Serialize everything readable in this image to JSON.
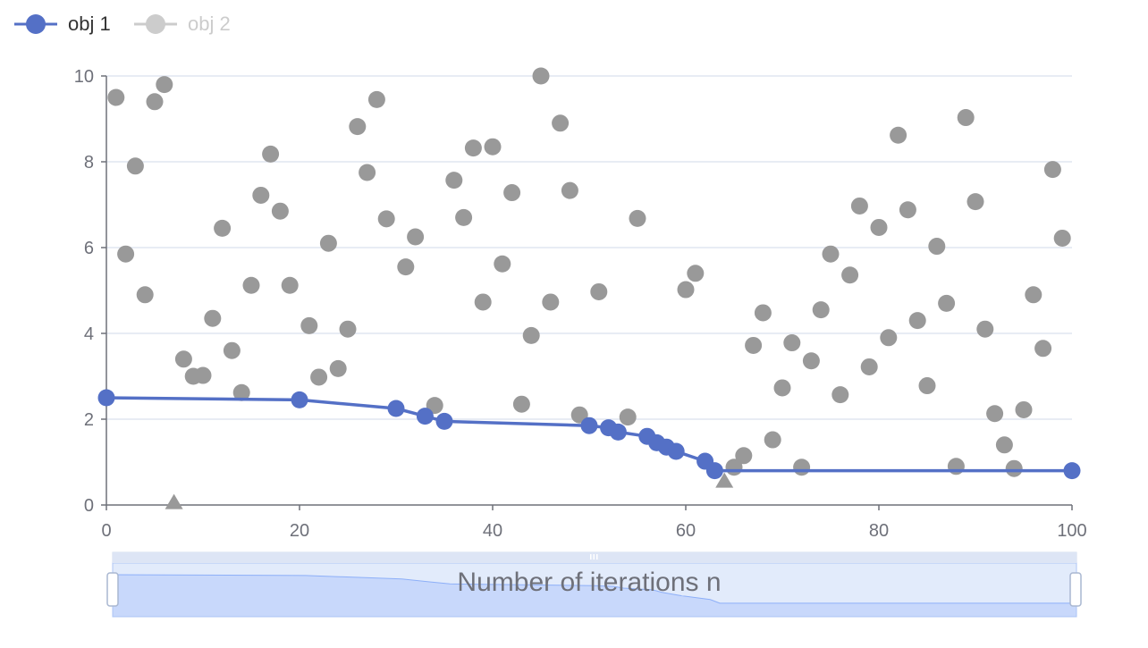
{
  "chart_data": {
    "type": "scatter",
    "xlabel": "Number of iterations n",
    "ylabel": "",
    "xlim": [
      0,
      100
    ],
    "ylim": [
      0,
      10
    ],
    "x_ticks": [
      0,
      20,
      40,
      60,
      80,
      100
    ],
    "y_ticks": [
      0,
      2,
      4,
      6,
      8,
      10
    ],
    "grid": "horizontal",
    "legend_position": "top-left",
    "colors": {
      "obj1": "#5470c6",
      "obj2": "#999999",
      "legend_inactive": "#cccccc",
      "axis": "#6e7079",
      "grid": "#e0e6f1"
    },
    "legend": [
      {
        "label": "obj 1",
        "state": "active"
      },
      {
        "label": "obj 2",
        "state": "inactive"
      }
    ],
    "series": [
      {
        "name": "obj 1",
        "kind": "line",
        "points": [
          [
            0,
            2.5
          ],
          [
            20,
            2.45
          ],
          [
            30,
            2.25
          ],
          [
            33,
            2.07
          ],
          [
            35,
            1.95
          ],
          [
            50,
            1.85
          ],
          [
            52,
            1.8
          ],
          [
            53,
            1.7
          ],
          [
            56,
            1.6
          ],
          [
            57,
            1.45
          ],
          [
            58,
            1.35
          ],
          [
            59,
            1.25
          ],
          [
            62,
            1.02
          ],
          [
            63,
            0.8
          ],
          [
            100,
            0.8
          ]
        ]
      },
      {
        "name": "obj 2",
        "kind": "scatter",
        "points": [
          [
            1,
            9.5
          ],
          [
            2,
            5.85
          ],
          [
            3,
            7.9
          ],
          [
            4,
            4.9
          ],
          [
            5,
            9.4
          ],
          [
            6,
            9.8
          ],
          [
            8,
            3.4
          ],
          [
            9,
            3.0
          ],
          [
            10,
            3.02
          ],
          [
            11,
            4.35
          ],
          [
            12,
            6.45
          ],
          [
            13,
            3.6
          ],
          [
            14,
            2.62
          ],
          [
            15,
            5.12
          ],
          [
            16,
            7.22
          ],
          [
            17,
            8.18
          ],
          [
            18,
            6.85
          ],
          [
            19,
            5.12
          ],
          [
            21,
            4.18
          ],
          [
            22,
            2.98
          ],
          [
            23,
            6.1
          ],
          [
            24,
            3.18
          ],
          [
            25,
            4.1
          ],
          [
            26,
            8.82
          ],
          [
            27,
            7.75
          ],
          [
            28,
            9.45
          ],
          [
            29,
            6.67
          ],
          [
            31,
            5.55
          ],
          [
            32,
            6.25
          ],
          [
            34,
            2.32
          ],
          [
            36,
            7.57
          ],
          [
            37,
            6.7
          ],
          [
            38,
            8.32
          ],
          [
            39,
            4.73
          ],
          [
            40,
            8.35
          ],
          [
            41,
            5.62
          ],
          [
            42,
            7.28
          ],
          [
            43,
            2.35
          ],
          [
            44,
            3.95
          ],
          [
            45,
            10.0
          ],
          [
            46,
            4.73
          ],
          [
            47,
            8.9
          ],
          [
            48,
            7.33
          ],
          [
            49,
            2.1
          ],
          [
            51,
            4.97
          ],
          [
            54,
            2.05
          ],
          [
            55,
            6.68
          ],
          [
            60,
            5.02
          ],
          [
            61,
            5.4
          ],
          [
            65,
            0.88
          ],
          [
            66,
            1.15
          ],
          [
            67,
            3.72
          ],
          [
            68,
            4.48
          ],
          [
            69,
            1.52
          ],
          [
            70,
            2.73
          ],
          [
            71,
            3.78
          ],
          [
            72,
            0.88
          ],
          [
            73,
            3.36
          ],
          [
            74,
            4.55
          ],
          [
            75,
            5.85
          ],
          [
            76,
            2.57
          ],
          [
            77,
            5.36
          ],
          [
            78,
            6.97
          ],
          [
            79,
            3.22
          ],
          [
            80,
            6.47
          ],
          [
            81,
            3.9
          ],
          [
            82,
            8.62
          ],
          [
            83,
            6.88
          ],
          [
            84,
            4.3
          ],
          [
            85,
            2.78
          ],
          [
            86,
            6.03
          ],
          [
            87,
            4.7
          ],
          [
            88,
            0.9
          ],
          [
            89,
            9.03
          ],
          [
            90,
            7.07
          ],
          [
            91,
            4.1
          ],
          [
            92,
            2.13
          ],
          [
            93,
            1.4
          ],
          [
            94,
            0.85
          ],
          [
            95,
            2.22
          ],
          [
            96,
            4.9
          ],
          [
            97,
            3.65
          ],
          [
            98,
            7.82
          ],
          [
            99,
            6.22
          ]
        ],
        "triangle_markers": [
          [
            7,
            0.05
          ],
          [
            64,
            0.55
          ]
        ]
      }
    ],
    "datazoom": {
      "start_percent": 0,
      "end_percent": 100
    }
  }
}
